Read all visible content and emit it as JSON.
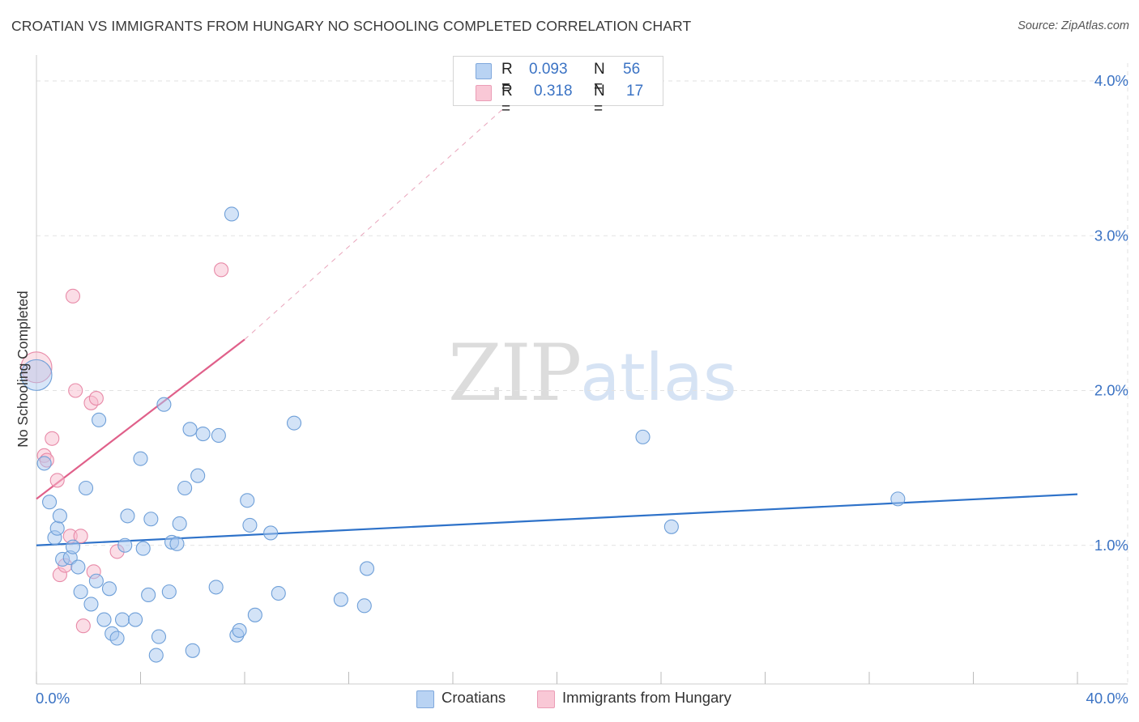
{
  "header": {
    "title": "CROATIAN VS IMMIGRANTS FROM HUNGARY NO SCHOOLING COMPLETED CORRELATION CHART",
    "source": "Source: ZipAtlas.com"
  },
  "watermark": {
    "zip": "ZIP",
    "atlas": "atlas"
  },
  "legend": {
    "rows": [
      {
        "r_label": "R =",
        "r_value": "0.093",
        "n_label": "N =",
        "n_value": "56"
      },
      {
        "r_label": "R =",
        "r_value": "0.318",
        "n_label": "N =",
        "n_value": "17"
      }
    ]
  },
  "bottom_legend": {
    "croatians": "Croatians",
    "hungary": "Immigrants from Hungary"
  },
  "colors": {
    "croatians_fill": "#a8c8f0",
    "croatians_stroke": "#6e9fd8",
    "croatians_line": "#2e72c9",
    "hungary_fill": "#f7bccd",
    "hungary_stroke": "#e88aa8",
    "hungary_line": "#e0608a",
    "axis_text": "#3b73c4",
    "grid": "#e2e2e2"
  },
  "chart_data": {
    "type": "scatter",
    "title": "CROATIAN VS IMMIGRANTS FROM HUNGARY NO SCHOOLING COMPLETED CORRELATION CHART",
    "xlabel": "",
    "ylabel": "No Schooling Completed",
    "xlim": [
      0,
      40
    ],
    "ylim": [
      0,
      4.0
    ],
    "x_tick_labels": [
      "0.0%",
      "40.0%"
    ],
    "y_ticks": [
      1.0,
      2.0,
      3.0,
      4.0
    ],
    "y_tick_labels": [
      "1.0%",
      "2.0%",
      "3.0%",
      "4.0%"
    ],
    "grid": true,
    "legend_position": "top-center",
    "series": [
      {
        "name": "Croatians",
        "R": 0.093,
        "N": 56,
        "trend": {
          "x": [
            0,
            40
          ],
          "y": [
            1.0,
            1.33
          ]
        },
        "points": [
          {
            "x": 0.0,
            "y": 2.1,
            "big": true
          },
          {
            "x": 0.3,
            "y": 1.53
          },
          {
            "x": 0.5,
            "y": 1.28
          },
          {
            "x": 0.7,
            "y": 1.05
          },
          {
            "x": 0.8,
            "y": 1.11
          },
          {
            "x": 0.9,
            "y": 1.19
          },
          {
            "x": 1.0,
            "y": 0.91
          },
          {
            "x": 1.3,
            "y": 0.92
          },
          {
            "x": 1.4,
            "y": 0.99
          },
          {
            "x": 1.6,
            "y": 0.86
          },
          {
            "x": 1.7,
            "y": 0.7
          },
          {
            "x": 1.9,
            "y": 1.37
          },
          {
            "x": 2.1,
            "y": 0.62
          },
          {
            "x": 2.3,
            "y": 0.77
          },
          {
            "x": 2.4,
            "y": 1.81
          },
          {
            "x": 2.6,
            "y": 0.52
          },
          {
            "x": 2.8,
            "y": 0.72
          },
          {
            "x": 2.9,
            "y": 0.43
          },
          {
            "x": 3.1,
            "y": 0.4
          },
          {
            "x": 3.3,
            "y": 0.52
          },
          {
            "x": 3.4,
            "y": 1.0
          },
          {
            "x": 3.5,
            "y": 1.19
          },
          {
            "x": 3.8,
            "y": 0.52
          },
          {
            "x": 4.0,
            "y": 1.56
          },
          {
            "x": 4.1,
            "y": 0.98
          },
          {
            "x": 4.3,
            "y": 0.68
          },
          {
            "x": 4.4,
            "y": 1.17
          },
          {
            "x": 4.6,
            "y": 0.29
          },
          {
            "x": 4.7,
            "y": 0.41
          },
          {
            "x": 4.9,
            "y": 1.91
          },
          {
            "x": 5.1,
            "y": 0.7
          },
          {
            "x": 5.2,
            "y": 1.02
          },
          {
            "x": 5.4,
            "y": 1.01
          },
          {
            "x": 5.5,
            "y": 1.14
          },
          {
            "x": 5.7,
            "y": 1.37
          },
          {
            "x": 5.9,
            "y": 1.75
          },
          {
            "x": 6.0,
            "y": 0.32
          },
          {
            "x": 6.2,
            "y": 1.45
          },
          {
            "x": 6.4,
            "y": 1.72
          },
          {
            "x": 6.9,
            "y": 0.73
          },
          {
            "x": 7.0,
            "y": 1.71
          },
          {
            "x": 7.5,
            "y": 3.14
          },
          {
            "x": 7.7,
            "y": 0.42
          },
          {
            "x": 7.8,
            "y": 0.45
          },
          {
            "x": 8.1,
            "y": 1.29
          },
          {
            "x": 8.2,
            "y": 1.13
          },
          {
            "x": 8.4,
            "y": 0.55
          },
          {
            "x": 9.0,
            "y": 1.08
          },
          {
            "x": 9.3,
            "y": 0.69
          },
          {
            "x": 9.9,
            "y": 1.79
          },
          {
            "x": 11.7,
            "y": 0.65
          },
          {
            "x": 12.6,
            "y": 0.61
          },
          {
            "x": 12.7,
            "y": 0.85
          },
          {
            "x": 23.3,
            "y": 1.7
          },
          {
            "x": 24.4,
            "y": 1.12
          },
          {
            "x": 33.1,
            "y": 1.3
          }
        ]
      },
      {
        "name": "Immigrants from Hungary",
        "R": 0.318,
        "N": 17,
        "trend": {
          "x": [
            0,
            8.0
          ],
          "y": [
            1.3,
            2.33
          ]
        },
        "trend_extension": {
          "x": [
            8.0,
            19.0
          ],
          "y": [
            2.33,
            3.98
          ]
        },
        "points": [
          {
            "x": 0.0,
            "y": 2.15,
            "big": true
          },
          {
            "x": 0.3,
            "y": 1.58
          },
          {
            "x": 0.4,
            "y": 1.55
          },
          {
            "x": 0.6,
            "y": 1.69
          },
          {
            "x": 0.8,
            "y": 1.42
          },
          {
            "x": 0.9,
            "y": 0.81
          },
          {
            "x": 1.1,
            "y": 0.87
          },
          {
            "x": 1.3,
            "y": 1.06
          },
          {
            "x": 1.4,
            "y": 2.61
          },
          {
            "x": 1.5,
            "y": 2.0
          },
          {
            "x": 1.7,
            "y": 1.06
          },
          {
            "x": 1.8,
            "y": 0.48
          },
          {
            "x": 2.1,
            "y": 1.92
          },
          {
            "x": 2.2,
            "y": 0.83
          },
          {
            "x": 2.3,
            "y": 1.95
          },
          {
            "x": 3.1,
            "y": 0.96
          },
          {
            "x": 7.1,
            "y": 2.78
          }
        ]
      }
    ]
  }
}
